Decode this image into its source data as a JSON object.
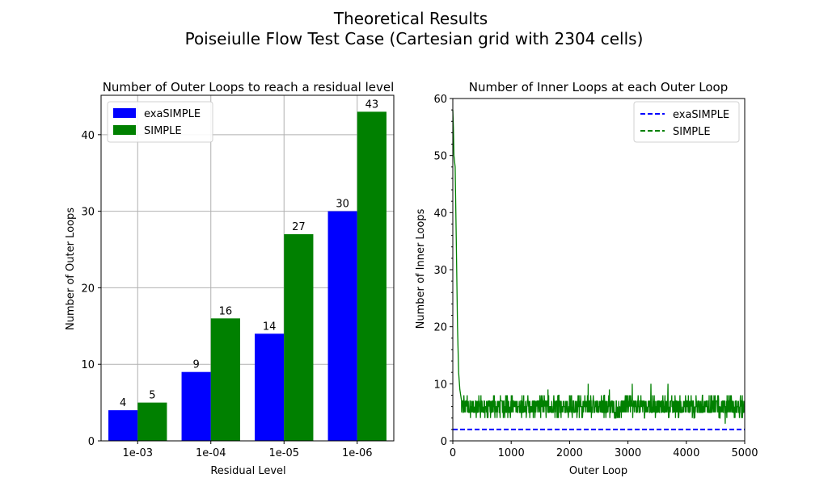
{
  "suptitle": [
    "Theoretical Results",
    "Poiseiulle Flow Test Case (Cartesian grid with 2304 cells)"
  ],
  "colors": {
    "exaSIMPLE": "#0000ff",
    "SIMPLE": "#008000",
    "grid": "#b0b0b0"
  },
  "chart_data": [
    {
      "type": "bar",
      "title": "Number of Outer Loops to reach a residual level",
      "xlabel": "Residual Level",
      "ylabel": "Number of Outer Loops",
      "categories": [
        "1e-03",
        "1e-04",
        "1e-05",
        "1e-06"
      ],
      "series": [
        {
          "name": "exaSIMPLE",
          "values": [
            4,
            9,
            14,
            30
          ],
          "labels": [
            "4",
            "9",
            "14",
            "30"
          ]
        },
        {
          "name": "SIMPLE",
          "values": [
            5,
            16,
            27,
            43
          ],
          "labels": [
            "5",
            "16",
            "27",
            "43"
          ]
        }
      ],
      "ylim": [
        0,
        45.15
      ],
      "yticks": [
        0,
        10,
        20,
        30,
        40
      ],
      "ytick_labels": [
        "0",
        "10",
        "20",
        "30",
        "40"
      ],
      "grid": true,
      "legend": "top-left"
    },
    {
      "type": "line",
      "title": "Number of Inner Loops at each Outer Loop",
      "xlabel": "Outer Loop",
      "ylabel": "Number of Inner Loops",
      "xlim": [
        0,
        5000
      ],
      "ylim": [
        0,
        60
      ],
      "xticks": [
        0,
        1000,
        2000,
        3000,
        4000,
        5000
      ],
      "xtick_labels": [
        "0",
        "1000",
        "2000",
        "3000",
        "4000",
        "5000"
      ],
      "yticks": [
        0,
        10,
        20,
        30,
        40,
        50,
        60
      ],
      "ytick_labels": [
        "0",
        "10",
        "20",
        "30",
        "40",
        "50",
        "60"
      ],
      "grid": false,
      "legend": "top-right",
      "series": [
        {
          "name": "exaSIMPLE",
          "style": "dashed",
          "constant": 2,
          "x_range": [
            0,
            5000
          ]
        },
        {
          "name": "SIMPLE",
          "style": "dashed",
          "initial_points": [
            [
              0,
              58
            ],
            [
              10,
              55
            ],
            [
              20,
              50
            ],
            [
              40,
              48
            ],
            [
              60,
              35
            ],
            [
              80,
              20
            ],
            [
              100,
              12
            ],
            [
              120,
              9
            ],
            [
              150,
              7
            ]
          ],
          "steady_range": [
            4,
            8
          ],
          "steady_typical": [
            5,
            7
          ],
          "occasional_extremes": [
            3,
            9,
            10
          ],
          "x_range": [
            0,
            5000
          ]
        }
      ]
    }
  ]
}
